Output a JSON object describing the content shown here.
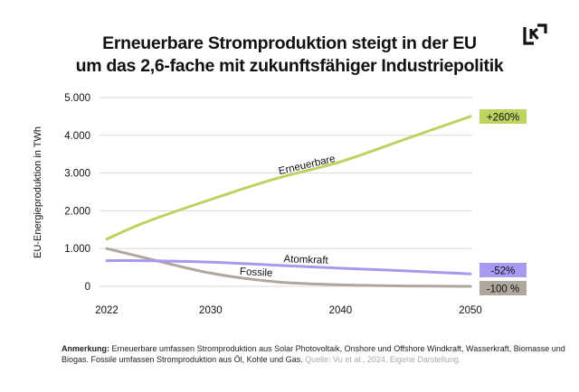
{
  "title": {
    "line1": "Erneuerbare Stromproduktion steigt in der EU",
    "line2": "um das 2,6-fache mit zukunftsfähiger Industriepolitik"
  },
  "logo": {
    "icon": "lk-logo-icon"
  },
  "colors": {
    "renewables": "#bcd35f",
    "nuclear": "#a898f0",
    "fossil": "#b0a79c",
    "grid": "#d8d8d8",
    "text": "#111111",
    "source": "#aaaaaa"
  },
  "chart_data": {
    "type": "line",
    "title": "Erneuerbare Stromproduktion steigt in der EU um das 2,6-fache mit zukunftsfähiger Industriepolitik",
    "xlabel": "",
    "ylabel": "EU-Energieproduktion in TWh",
    "xlim": [
      2022,
      2050
    ],
    "ylim": [
      0,
      5000
    ],
    "grid": true,
    "x_ticks": [
      2022,
      2030,
      2040,
      2050
    ],
    "x_tick_labels": [
      "2022",
      "2030",
      "2040",
      "2050"
    ],
    "y_ticks": [
      0,
      1000,
      2000,
      3000,
      4000,
      5000
    ],
    "y_tick_labels": [
      "0",
      "1.000",
      "2.000",
      "3.000",
      "4.000",
      "5.000"
    ],
    "x": [
      2022,
      2025,
      2030,
      2035,
      2040,
      2045,
      2050
    ],
    "series": [
      {
        "name": "Erneuerbare",
        "key": "renewables",
        "values": [
          1250,
          1700,
          2300,
          2850,
          3300,
          3900,
          4500
        ],
        "end_label": "+260%"
      },
      {
        "name": "Atomkraft",
        "key": "nuclear",
        "values": [
          680,
          680,
          640,
          560,
          480,
          410,
          330
        ],
        "end_label": "-52%"
      },
      {
        "name": "Fossile",
        "key": "fossil",
        "values": [
          1000,
          750,
          350,
          120,
          40,
          10,
          0
        ],
        "end_label": "-100 %"
      }
    ],
    "annotations": [
      {
        "text": "Erneuerbare",
        "series": "renewables"
      },
      {
        "text": "Atomkraft",
        "series": "nuclear"
      },
      {
        "text": "Fossile",
        "series": "fossil"
      }
    ]
  },
  "footnote": {
    "label": "Anmerkung:",
    "text": " Erneuerbare umfassen Stromproduktion aus Solar Photovoltaik, Onshore und Offshore Windkraft, Wasserkraft, Biomasse und Biogas. Fossile umfassen Stromproduktion aus Öl, Kohle und Gas.",
    "source": " Quelle: Vu et al., 2024, Eigene Darstellung."
  }
}
